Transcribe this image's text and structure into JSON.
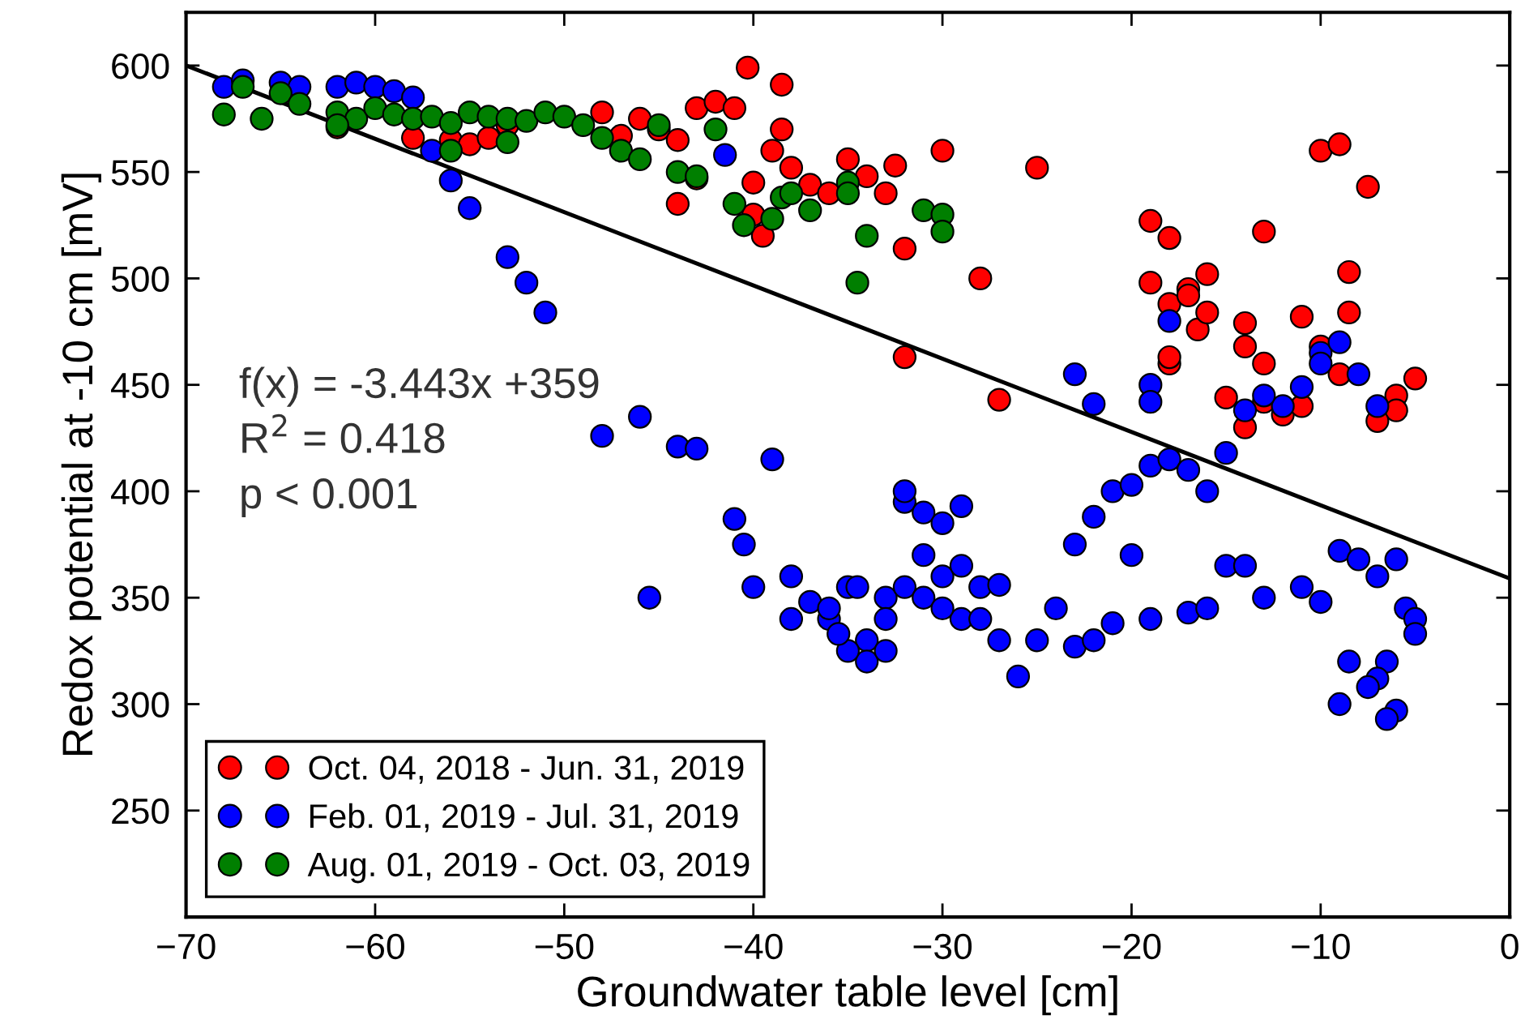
{
  "chart_data": {
    "type": "scatter",
    "xlabel": "Groundwater table level [cm]",
    "ylabel": "Redox potential at -10 cm [mV]",
    "xlim": [
      -70,
      0
    ],
    "ylim": [
      200,
      625
    ],
    "xticks": [
      {
        "value": -70,
        "label": "−70"
      },
      {
        "value": -60,
        "label": "−60"
      },
      {
        "value": -50,
        "label": "−50"
      },
      {
        "value": -40,
        "label": "−40"
      },
      {
        "value": -30,
        "label": "−30"
      },
      {
        "value": -20,
        "label": "−20"
      },
      {
        "value": -10,
        "label": "−10"
      },
      0
    ],
    "yticks": [
      250,
      300,
      350,
      400,
      450,
      500,
      550,
      600
    ],
    "grid": false,
    "legend": "bottom left",
    "marker": "circle",
    "annotations": [
      "f(x) = -3.443x +359",
      "R$^{2}$ = 0.418",
      "p < 0.001"
    ],
    "series": [
      {
        "name": "Oct. 04, 2018 - Jun. 31, 2019",
        "color": "#ff0000",
        "x": [
          -62,
          -58,
          -56,
          -55,
          -54,
          -53,
          -48,
          -47,
          -46,
          -45,
          -44,
          -44,
          -43,
          -43,
          -42,
          -41,
          -40.3,
          -40,
          -39.5,
          -40,
          -39,
          -38.5,
          -38.5,
          -38,
          -37,
          -36,
          -35,
          -34,
          -33,
          -32.5,
          -32,
          -32,
          -30,
          -28,
          -27,
          -25,
          -19,
          -18,
          -19,
          -18,
          -17,
          -17,
          -16.5,
          -16,
          -16,
          -15,
          -14,
          -14,
          -13,
          -13,
          -13,
          -12,
          -11,
          -10,
          -10,
          -9,
          -8.5,
          -8.5,
          -7.5,
          -6,
          -6,
          -5,
          -7,
          -9,
          -11,
          -14,
          -18,
          -18
        ],
        "values": [
          571,
          566,
          565,
          563,
          566,
          572,
          578,
          567,
          575,
          570,
          565,
          535,
          580,
          547,
          583,
          580,
          599,
          530,
          520,
          545,
          560,
          591,
          570,
          552,
          544,
          540,
          556,
          548,
          540,
          553,
          514,
          463,
          560,
          500,
          443,
          552,
          527,
          519,
          498,
          488,
          495,
          492,
          476,
          484,
          502,
          444,
          479,
          468,
          522,
          460,
          442,
          436,
          482,
          468,
          560,
          563,
          503,
          484,
          543,
          445,
          438,
          453,
          433,
          455,
          440,
          430,
          460,
          463
        ]
      },
      {
        "name": "Feb. 01, 2019 - Jul. 31, 2019",
        "color": "#0000ff",
        "x": [
          -68,
          -67,
          -65,
          -64,
          -62,
          -61,
          -60,
          -59,
          -58,
          -57,
          -56,
          -55,
          -53,
          -52,
          -51,
          -41.5,
          -48,
          -46,
          -44,
          -43,
          -45.5,
          -39,
          -41,
          -40.5,
          -40,
          -38,
          -38,
          -37,
          -36,
          -35,
          -34,
          -34,
          -33,
          -33,
          -32,
          -32,
          -31,
          -31,
          -30,
          -30,
          -29,
          -29,
          -28,
          -27,
          -26,
          -25,
          -24,
          -23,
          -22,
          -21,
          -20,
          -19,
          -17,
          -16,
          -15,
          -14,
          -13,
          -11,
          -10,
          -9,
          -8,
          -7,
          -6,
          -5.5,
          -5,
          -5,
          -6.5,
          -7,
          -7.5,
          -8.5,
          -9,
          -6,
          -6.5,
          -35,
          -36,
          -33,
          -32,
          -31,
          -30,
          -29,
          -28,
          -27,
          -35.5,
          -34.5,
          -23,
          -22,
          -23,
          -22,
          -21,
          -20,
          -19,
          -18,
          -17,
          -16,
          -15,
          -19,
          -19,
          -18,
          -12,
          -11,
          -10,
          -9,
          -8,
          -10,
          -13,
          -14,
          -7
        ],
        "values": [
          590,
          593,
          592,
          590,
          590,
          592,
          590,
          588,
          585,
          560,
          546,
          533,
          510,
          498,
          484,
          558,
          426,
          435,
          421,
          420,
          350,
          415,
          387,
          375,
          355,
          360,
          340,
          348,
          340,
          355,
          330,
          320,
          350,
          325,
          395,
          400,
          390,
          370,
          385,
          360,
          393,
          340,
          355,
          330,
          313,
          330,
          345,
          327,
          330,
          338,
          370,
          340,
          343,
          345,
          365,
          365,
          350,
          355,
          348,
          372,
          368,
          360,
          368,
          345,
          340,
          333,
          320,
          312,
          308,
          320,
          300,
          297,
          293,
          325,
          345,
          340,
          355,
          350,
          345,
          365,
          340,
          356,
          333,
          355,
          455,
          441,
          375,
          388,
          400,
          403,
          412,
          415,
          410,
          400,
          418,
          450,
          442,
          480,
          440,
          449,
          465,
          470,
          455,
          460,
          445,
          438,
          440
        ]
      },
      {
        "name": "Aug. 01, 2019 - Oct. 03, 2019",
        "color": "#007f00",
        "x": [
          -68,
          -67,
          -66,
          -65,
          -64,
          -62,
          -61,
          -60,
          -59,
          -58,
          -57,
          -56,
          -55,
          -54,
          -53,
          -52,
          -51,
          -50,
          -49,
          -48,
          -47,
          -46,
          -45,
          -44,
          -43,
          -42,
          -41,
          -40.5,
          -39,
          -38.5,
          -38,
          -37,
          -35,
          -35,
          -34,
          -34.5,
          -31,
          -30,
          -30,
          -62,
          -56,
          -53
        ],
        "values": [
          577,
          590,
          575,
          587,
          582,
          578,
          575,
          580,
          577,
          575,
          576,
          573,
          578,
          576,
          575,
          574,
          578,
          576,
          572,
          566,
          560,
          556,
          572,
          550,
          548,
          570,
          535,
          525,
          528,
          538,
          540,
          532,
          545,
          540,
          520,
          498,
          532,
          530,
          522,
          572,
          560,
          564
        ]
      },
      {
        "type": "line",
        "marker": "none",
        "color": "#000000",
        "x": [
          -70,
          0
        ],
        "values": [
          600,
          359
        ]
      }
    ]
  }
}
